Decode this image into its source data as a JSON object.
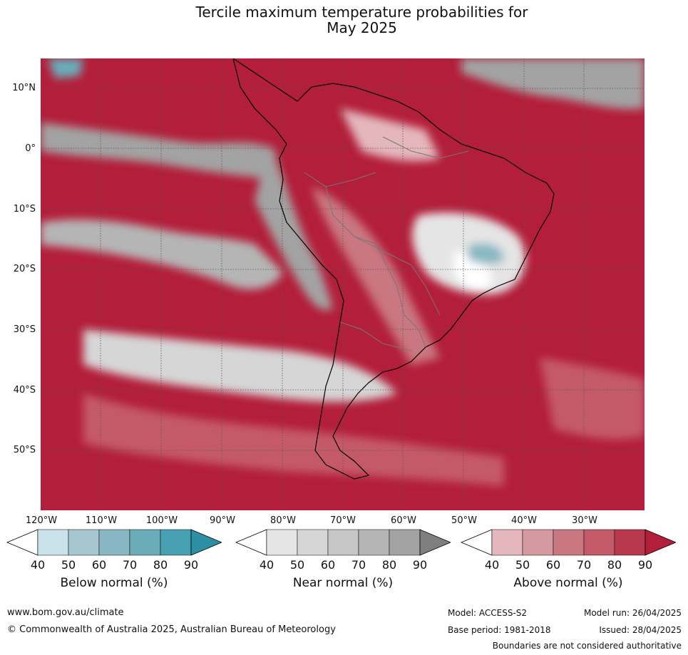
{
  "title_line1": "Tercile maximum temperature probabilities for",
  "title_line2": "May 2025",
  "lat_labels": [
    "10°N",
    "0°",
    "10°S",
    "20°S",
    "30°S",
    "40°S",
    "50°S"
  ],
  "lon_labels": [
    "120°W",
    "110°W",
    "100°W",
    "90°W",
    "80°W",
    "70°W",
    "60°W",
    "50°W",
    "40°W",
    "30°W"
  ],
  "colorbars": [
    {
      "label": "Below normal (%)",
      "ticks": [
        "40",
        "50",
        "60",
        "70",
        "80",
        "90"
      ],
      "colors": [
        "#ffffff",
        "#c9e1e8",
        "#a6c7cf",
        "#88b7c3",
        "#6aadb9",
        "#47a0b2",
        "#2d8fa3"
      ]
    },
    {
      "label": "Near normal (%)",
      "ticks": [
        "40",
        "50",
        "60",
        "70",
        "80",
        "90"
      ],
      "colors": [
        "#ffffff",
        "#e5e5e5",
        "#d6d6d6",
        "#c6c6c6",
        "#b5b5b5",
        "#a3a3a3",
        "#7f7f7f"
      ]
    },
    {
      "label": "Above normal (%)",
      "ticks": [
        "40",
        "50",
        "60",
        "70",
        "80",
        "90"
      ],
      "colors": [
        "#ffffff",
        "#e4b7bd",
        "#d59aa1",
        "#c97780",
        "#c45a68",
        "#b8394d",
        "#b31e3a"
      ]
    }
  ],
  "footer": {
    "website": "www.bom.gov.au/climate",
    "copyright": "© Commonwealth of Australia 2025, Australian Bureau of Meteorology",
    "model": "Model: ACCESS-S2",
    "base_period": "Base period: 1981-2018",
    "model_run": "Model run: 26/04/2025",
    "issued": "Issued: 28/04/2025",
    "disclaimer": "Boundaries are not considered authoritative"
  }
}
